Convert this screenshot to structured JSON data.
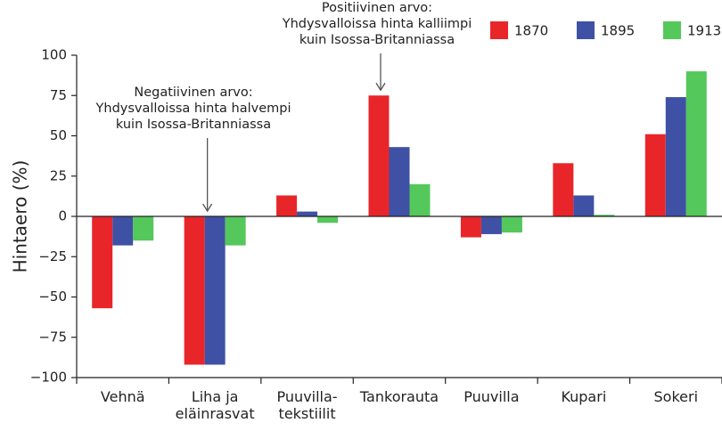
{
  "chart_data": {
    "type": "bar",
    "title": "",
    "xlabel": "",
    "ylabel": "Hintaero (%)",
    "ylim": [
      -100,
      100
    ],
    "yticks": [
      100,
      75,
      50,
      25,
      0,
      -25,
      -50,
      -75,
      -100
    ],
    "ytick_labels": [
      "100",
      "75",
      "50",
      "25",
      "0",
      "−25",
      "−50",
      "−75",
      "−100"
    ],
    "categories": [
      [
        "Vehnä"
      ],
      [
        "Liha ja",
        "eläinrasvat"
      ],
      [
        "Puuvilla-",
        "tekstiilit"
      ],
      [
        "Tankorauta"
      ],
      [
        "Puuvilla"
      ],
      [
        "Kupari"
      ],
      [
        "Sokeri"
      ]
    ],
    "series": [
      {
        "name": "1870",
        "color": "#e8262a",
        "values": [
          -57,
          -92,
          13,
          75,
          -13,
          33,
          51
        ]
      },
      {
        "name": "1895",
        "color": "#3f51a5",
        "values": [
          -18,
          -92,
          3,
          43,
          -11,
          13,
          74
        ]
      },
      {
        "name": "1913",
        "color": "#54c85a",
        "values": [
          -15,
          -18,
          -4,
          20,
          -10,
          1,
          90
        ]
      }
    ],
    "legend_position": "top-right",
    "annotations": [
      {
        "lines": [
          "Positiivinen arvo:",
          "Yhdysvalloissa hinta kalliimpi",
          "kuin Isossa-Britanniassa"
        ],
        "target_category": 3
      },
      {
        "lines": [
          "Negatiivinen arvo:",
          "Yhdysvalloissa hinta halvempi",
          "kuin Isossa-Britanniassa"
        ],
        "target_category": 1
      }
    ]
  }
}
